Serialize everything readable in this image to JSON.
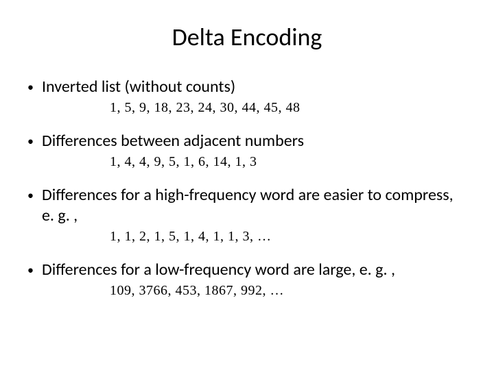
{
  "title": "Delta Encoding",
  "bullets": [
    {
      "text": "Inverted list (without counts)",
      "numbers": "1, 5, 9, 18, 23, 24, 30, 44, 45, 48"
    },
    {
      "text": "Differences between adjacent numbers",
      "numbers": "1, 4, 4, 9, 5, 1, 6, 14, 1, 3"
    },
    {
      "text": "Differences for a high-frequency word  are easier to compress, e. g. ,",
      "numbers": "1, 1, 2, 1, 5, 1, 4, 1, 1, 3, …"
    },
    {
      "text": "Differences for a low-frequency word are large, e. g. ,",
      "numbers": "109, 3766, 453, 1867, 992, …"
    }
  ],
  "style": {
    "title_fontsize": 36,
    "bullet_fontsize": 24,
    "numbers_fontsize": 20,
    "numbers_font": "Times New Roman",
    "body_font": "Calibri",
    "background": "#ffffff",
    "text_color": "#000000"
  }
}
